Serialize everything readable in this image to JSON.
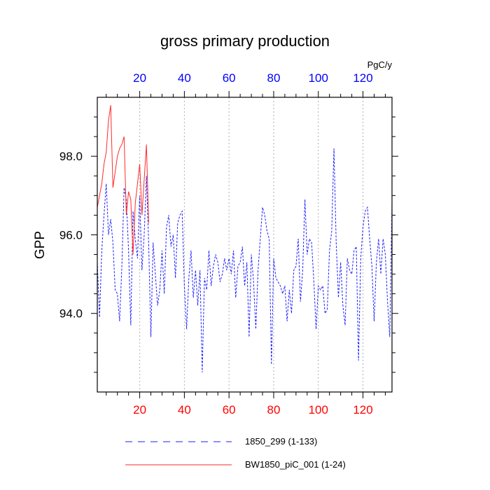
{
  "chart_data": {
    "type": "line",
    "title": "gross primary production",
    "ylabel": "GPP",
    "units": "PgC/y",
    "xlim": [
      1,
      133
    ],
    "ylim": [
      92.0,
      99.5
    ],
    "x_ticks": [
      20,
      40,
      60,
      80,
      100,
      120
    ],
    "x_tick_labels": [
      "20",
      "40",
      "60",
      "80",
      "100",
      "120"
    ],
    "y_ticks": [
      94.0,
      96.0,
      98.0
    ],
    "y_tick_labels": [
      "94.0",
      "96.0",
      "98.0"
    ],
    "grid": "vertical dotted at major x ticks",
    "colors": {
      "series_blue": "#1e1eff",
      "series_red": "#ff2a2a",
      "top_tick_labels": "#0000ff",
      "bottom_tick_labels": "#ff0000"
    },
    "series": [
      {
        "name": "1850_299 (1-133)",
        "style": "dashed",
        "color": "#1e1eff",
        "x": [
          1,
          2,
          3,
          4,
          5,
          6,
          7,
          8,
          9,
          10,
          11,
          12,
          13,
          14,
          15,
          16,
          17,
          18,
          19,
          20,
          21,
          22,
          23,
          24,
          25,
          26,
          27,
          28,
          29,
          30,
          31,
          32,
          33,
          34,
          35,
          36,
          37,
          38,
          39,
          40,
          41,
          42,
          43,
          44,
          45,
          46,
          47,
          48,
          49,
          50,
          51,
          52,
          53,
          54,
          55,
          56,
          57,
          58,
          59,
          60,
          61,
          62,
          63,
          64,
          65,
          66,
          67,
          68,
          69,
          70,
          71,
          72,
          73,
          74,
          75,
          76,
          77,
          78,
          79,
          80,
          81,
          82,
          83,
          84,
          85,
          86,
          87,
          88,
          89,
          90,
          91,
          92,
          93,
          94,
          95,
          96,
          97,
          98,
          99,
          100,
          101,
          102,
          103,
          104,
          105,
          106,
          107,
          108,
          109,
          110,
          111,
          112,
          113,
          114,
          115,
          116,
          117,
          118,
          119,
          120,
          121,
          122,
          123,
          124,
          125,
          126,
          127,
          128,
          129,
          130,
          131,
          132,
          133
        ],
        "values": [
          95.3,
          93.9,
          95.6,
          96.5,
          97.3,
          96.0,
          96.4,
          95.8,
          94.6,
          94.5,
          93.8,
          95.2,
          97.2,
          96.9,
          95.6,
          93.7,
          96.6,
          95.9,
          95.4,
          97.0,
          95.1,
          96.0,
          97.5,
          95.8,
          93.4,
          95.8,
          95.0,
          94.2,
          94.6,
          95.6,
          94.5,
          96.2,
          96.5,
          95.7,
          96.0,
          94.9,
          96.3,
          96.5,
          96.6,
          94.7,
          93.6,
          94.9,
          95.6,
          94.4,
          95.1,
          94.2,
          95.1,
          92.5,
          94.9,
          94.6,
          95.6,
          94.7,
          95.2,
          95.5,
          95.3,
          94.8,
          95.0,
          95.4,
          95.1,
          95.4,
          95.0,
          95.6,
          94.4,
          95.2,
          95.3,
          95.7,
          94.7,
          95.3,
          93.4,
          95.5,
          94.8,
          93.6,
          95.1,
          95.9,
          96.7,
          96.5,
          96.1,
          95.9,
          92.7,
          95.4,
          94.9,
          94.8,
          94.7,
          94.5,
          94.7,
          93.8,
          94.6,
          94.0,
          95.1,
          95.2,
          95.9,
          94.3,
          95.1,
          96.9,
          95.5,
          95.9,
          95.8,
          94.8,
          93.6,
          94.7,
          94.6,
          94.7,
          94.0,
          94.1,
          95.6,
          96.1,
          98.2,
          95.8,
          94.4,
          95.3,
          94.2,
          93.7,
          95.4,
          95.1,
          95.0,
          95.6,
          95.7,
          92.8,
          95.4,
          96.2,
          96.6,
          96.7,
          95.9,
          95.2,
          93.8,
          95.3,
          95.9,
          95.0,
          95.9,
          95.5,
          94.3,
          93.4,
          96.8
        ]
      },
      {
        "name": "BW1850_piC_001 (1-24)",
        "style": "solid",
        "color": "#ff2a2a",
        "x": [
          1,
          2,
          3,
          4,
          5,
          6,
          7,
          8,
          9,
          10,
          11,
          12,
          13,
          14,
          15,
          16,
          17,
          18,
          19,
          20,
          21,
          22,
          23,
          24
        ],
        "values": [
          96.7,
          97.0,
          97.3,
          97.8,
          98.1,
          98.9,
          99.3,
          97.2,
          97.6,
          98.0,
          98.2,
          98.3,
          98.5,
          96.5,
          97.1,
          96.9,
          95.5,
          96.8,
          97.3,
          97.8,
          96.5,
          97.4,
          98.3,
          96.3
        ]
      }
    ],
    "legend": {
      "placement": "bottom",
      "entries": [
        "1850_299 (1-133)",
        "BW1850_piC_001 (1-24)"
      ]
    }
  }
}
